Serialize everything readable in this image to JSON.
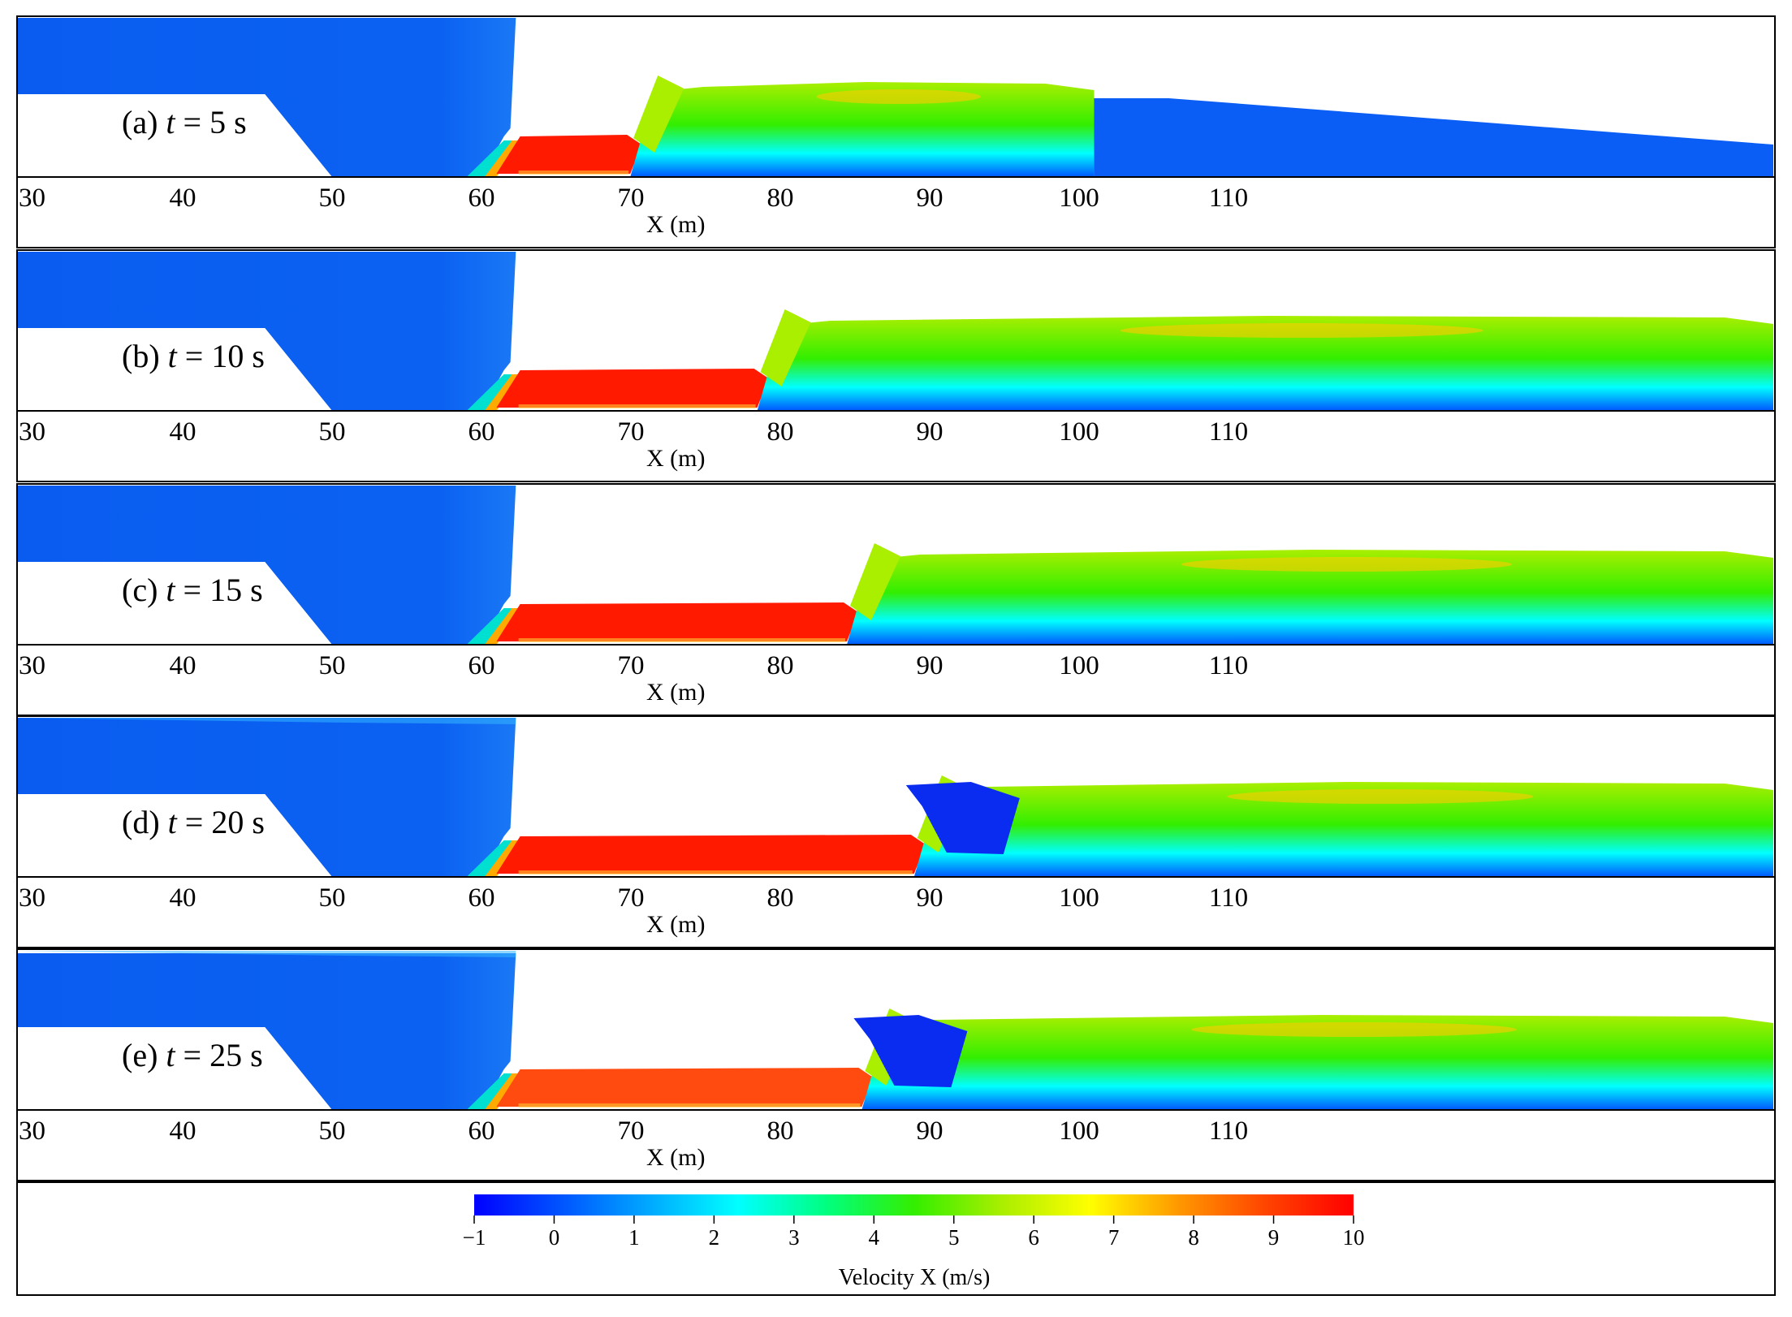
{
  "figure": {
    "colormap_stops": [
      "#0000ff",
      "#0055ff",
      "#00aaff",
      "#00ffff",
      "#00ff80",
      "#33ee00",
      "#aaee00",
      "#ffff00",
      "#ff9900",
      "#ff4400",
      "#ff0000"
    ],
    "panels": [
      {
        "label_prefix": "(a) ",
        "label_var": "t",
        "label_suffix": " = 5 s",
        "time_s": 5,
        "front_m": 70.5,
        "downstream": "partial",
        "downstream_end_m": 101,
        "recirc": "none"
      },
      {
        "label_prefix": "(b) ",
        "label_var": "t",
        "label_suffix": " = 10 s",
        "time_s": 10,
        "front_m": 79,
        "downstream": "full",
        "recirc": "none"
      },
      {
        "label_prefix": "(c) ",
        "label_var": "t",
        "label_suffix": " = 15 s",
        "time_s": 15,
        "front_m": 85,
        "downstream": "full",
        "recirc": "none"
      },
      {
        "label_prefix": "(d) ",
        "label_var": "t",
        "label_suffix": " = 20 s",
        "time_s": 20,
        "front_m": 89.5,
        "downstream": "full",
        "recirc": "roller"
      },
      {
        "label_prefix": "(e) ",
        "label_var": "t",
        "label_suffix": " = 25 s",
        "time_s": 25,
        "front_m": 86,
        "downstream": "full",
        "recirc": "roller"
      }
    ],
    "x_axis": {
      "title": "X (m)",
      "ticks": [
        "30",
        "40",
        "50",
        "60",
        "70",
        "80",
        "90",
        "100",
        "110"
      ]
    },
    "colorbar": {
      "title": "Velocity X (m/s)",
      "min": -1,
      "max": 10,
      "ticks": [
        "−1",
        "0",
        "1",
        "2",
        "3",
        "4",
        "5",
        "6",
        "7",
        "8",
        "9",
        "10"
      ]
    }
  }
}
